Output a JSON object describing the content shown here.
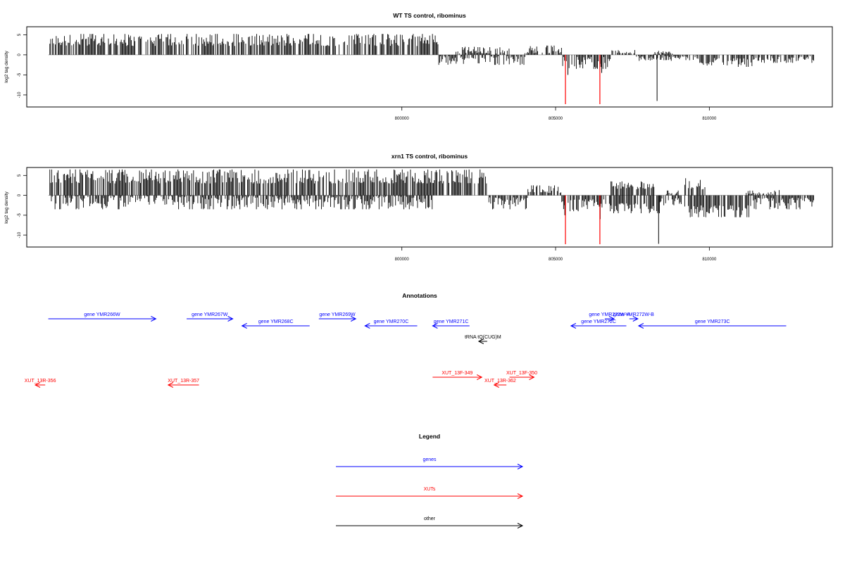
{
  "colors": {
    "gene": "#0000ff",
    "xut": "#ff0000",
    "other": "#000000",
    "bar": "#000000",
    "highlight": "#ff0000"
  },
  "chart_data": [
    {
      "type": "bar",
      "title": "WT TS control, ribominus",
      "ylabel": "log2 tag density",
      "xlim": [
        787800,
        814000
      ],
      "ylim": [
        -13,
        7
      ],
      "xticks": [
        800000,
        805000,
        810000
      ],
      "yticks": [
        5,
        0,
        -5,
        -10
      ],
      "data_range": [
        788500,
        813400
      ],
      "profile": [
        {
          "from": 788500,
          "to": 812600,
          "sign": 1,
          "max": 5,
          "density": 3,
          "segments": [
            [
              788500,
              792500,
              4.5
            ],
            [
              792500,
              797500,
              4.5
            ],
            [
              797500,
              803000,
              5.2
            ],
            [
              803000,
              815000,
              0
            ]
          ]
        },
        {
          "from": 788500,
          "to": 813400,
          "sign": 1,
          "max": 5,
          "density": 0,
          "segments": []
        }
      ],
      "positive_regions": [
        [
          788550,
          801200,
          5.2,
          2.2
        ],
        [
          801700,
          803500,
          2.0,
          0.3
        ],
        [
          804000,
          805200,
          2.3,
          0.4
        ],
        [
          806800,
          807600,
          1.2,
          0.3
        ],
        [
          808200,
          808800,
          1.0,
          0.2
        ]
      ],
      "negative_regions": [
        [
          801200,
          804000,
          2.5,
          0.3
        ],
        [
          805200,
          806800,
          3.5,
          0.5
        ],
        [
          807600,
          809600,
          1.5,
          0.3
        ],
        [
          809600,
          811400,
          3.0,
          0.8
        ],
        [
          811400,
          813400,
          2.0,
          0.3
        ]
      ],
      "spikes": [
        {
          "x": 808300,
          "y": -11.5
        },
        {
          "x": 805400,
          "y": -5
        },
        {
          "x": 806500,
          "y": -4.5
        }
      ],
      "highlights": [
        {
          "x": 805320,
          "y": -12.3
        },
        {
          "x": 806440,
          "y": -12.3
        }
      ]
    },
    {
      "type": "bar",
      "title": "xrn1 TS control, ribominus",
      "ylabel": "log2 tag density",
      "xlim": [
        787800,
        814000
      ],
      "ylim": [
        -13,
        7
      ],
      "xticks": [
        800000,
        805000,
        810000
      ],
      "yticks": [
        5,
        0,
        -5,
        -10
      ],
      "positive_regions": [
        [
          788550,
          802800,
          6.5,
          3.0
        ],
        [
          804100,
          805200,
          2.5,
          0.5
        ],
        [
          806800,
          808200,
          3.5,
          1.5
        ],
        [
          808600,
          809000,
          1.2,
          0.3
        ],
        [
          809200,
          809900,
          4.5,
          1.5
        ],
        [
          811200,
          812300,
          1.5,
          0.3
        ]
      ],
      "negative_regions": [
        [
          788600,
          801000,
          3.5,
          0.2
        ],
        [
          802800,
          804100,
          3.5,
          0.5
        ],
        [
          805200,
          806800,
          4.0,
          1.0
        ],
        [
          806800,
          808400,
          4.5,
          2.0
        ],
        [
          808400,
          809200,
          2.5,
          0.6
        ],
        [
          809200,
          811400,
          5.5,
          2.5
        ],
        [
          811400,
          813400,
          3.5,
          0.6
        ]
      ],
      "spikes": [
        {
          "x": 808350,
          "y": -12.2
        },
        {
          "x": 790800,
          "y": -3.5
        },
        {
          "x": 805300,
          "y": -5
        },
        {
          "x": 806450,
          "y": -6
        }
      ],
      "highlights": [
        {
          "x": 805320,
          "y": -12.3
        },
        {
          "x": 806440,
          "y": -12.3
        }
      ]
    }
  ],
  "annotations": {
    "title": "Annotations",
    "xlim": [
      787800,
      814000
    ],
    "features": [
      {
        "label": "gene YMR266W",
        "start": 788500,
        "end": 792000,
        "dir": "right",
        "kind": "gene",
        "row": 0
      },
      {
        "label": "gene YMR267W",
        "start": 793000,
        "end": 794500,
        "dir": "right",
        "kind": "gene",
        "row": 0
      },
      {
        "label": "gene YMR268C",
        "start": 794800,
        "end": 797000,
        "dir": "left",
        "kind": "gene",
        "row": 1
      },
      {
        "label": "gene YMR269W",
        "start": 797300,
        "end": 798500,
        "dir": "right",
        "kind": "gene",
        "row": 0
      },
      {
        "label": "gene YMR270C",
        "start": 798800,
        "end": 800500,
        "dir": "left",
        "kind": "gene",
        "row": 1
      },
      {
        "label": "gene YMR271C",
        "start": 801000,
        "end": 802200,
        "dir": "left",
        "kind": "gene",
        "row": 1
      },
      {
        "label": "gene YMR272W-A",
        "start": 806600,
        "end": 806900,
        "dir": "right",
        "kind": "gene",
        "row": 0
      },
      {
        "label": "gene YMR272W-B",
        "start": 807400,
        "end": 807600,
        "dir": "right",
        "kind": "gene",
        "row": 0
      },
      {
        "label": "gene YMR272C",
        "start": 805500,
        "end": 807300,
        "dir": "left",
        "kind": "gene",
        "row": 1
      },
      {
        "label": "gene YMR273C",
        "start": 807700,
        "end": 812500,
        "dir": "left",
        "kind": "gene",
        "row": 1
      },
      {
        "label": "tRNA tQ(CUG)M",
        "start": 802500,
        "end": 802700,
        "dir": "left",
        "kind": "other",
        "row": 2
      },
      {
        "label": "XUT_13F-349",
        "start": 801000,
        "end": 802600,
        "dir": "right",
        "kind": "xut",
        "row": 3
      },
      {
        "label": "XUT_13F-350",
        "start": 803500,
        "end": 804300,
        "dir": "right",
        "kind": "xut",
        "row": 3
      },
      {
        "label": "XUT_13R-356",
        "start": 787800,
        "end": 788400,
        "dir": "left",
        "kind": "xut",
        "row": 4
      },
      {
        "label": "XUT_13R-357",
        "start": 792400,
        "end": 793400,
        "dir": "left",
        "kind": "xut",
        "row": 4
      },
      {
        "label": "XUT_13R-362",
        "start": 803000,
        "end": 803400,
        "dir": "left",
        "kind": "xut",
        "row": 4
      }
    ]
  },
  "legend": {
    "title": "Legend",
    "items": [
      {
        "label": "genes",
        "kind": "gene"
      },
      {
        "label": "XUTs",
        "kind": "xut"
      },
      {
        "label": "other",
        "kind": "other"
      }
    ]
  }
}
